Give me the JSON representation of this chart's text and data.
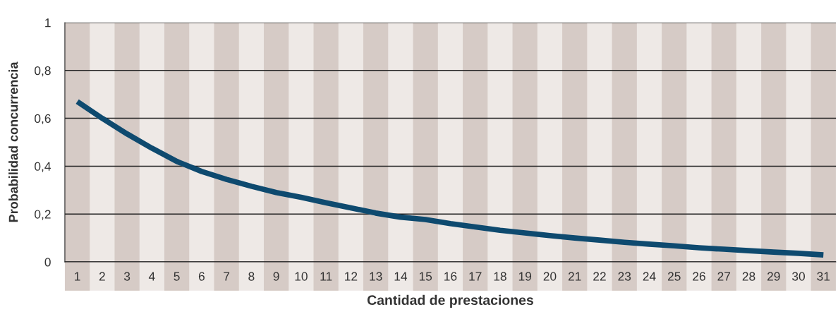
{
  "chart_data": {
    "type": "line",
    "xlabel": "Cantidad de prestaciones",
    "ylabel": "Probabilidad concurrencia",
    "categories": [
      "1",
      "2",
      "3",
      "4",
      "5",
      "6",
      "7",
      "8",
      "9",
      "10",
      "11",
      "12",
      "13",
      "14",
      "15",
      "16",
      "17",
      "18",
      "19",
      "20",
      "21",
      "22",
      "23",
      "24",
      "25",
      "26",
      "27",
      "28",
      "29",
      "30",
      "31"
    ],
    "series": [
      {
        "color": "#0e4a6f",
        "values": [
          0.67,
          0.6,
          0.535,
          0.475,
          0.42,
          0.378,
          0.345,
          0.316,
          0.29,
          0.27,
          0.247,
          0.226,
          0.204,
          0.187,
          0.177,
          0.16,
          0.146,
          0.132,
          0.121,
          0.11,
          0.1,
          0.091,
          0.082,
          0.074,
          0.067,
          0.059,
          0.053,
          0.047,
          0.041,
          0.036,
          0.029
        ]
      }
    ],
    "ylim": [
      0,
      1
    ],
    "yticks": [
      0,
      {
        "value": 0.2,
        "label": "0,2"
      },
      {
        "value": 0.4,
        "label": "0,4"
      },
      {
        "value": 0.6,
        "label": "0,6"
      },
      {
        "value": 0.8,
        "label": "0,8"
      },
      1
    ],
    "bands": [
      {
        "axis": "x",
        "from": "1",
        "to": "1",
        "color": "#d6cbc6"
      },
      {
        "axis": "x",
        "from": "3",
        "to": "3",
        "color": "#d6cbc6"
      },
      {
        "axis": "x",
        "from": "5",
        "to": "5",
        "color": "#d6cbc6"
      },
      {
        "axis": "x",
        "from": "7",
        "to": "7",
        "color": "#d6cbc6"
      },
      {
        "axis": "x",
        "from": "9",
        "to": "9",
        "color": "#d6cbc6"
      },
      {
        "axis": "x",
        "from": "11",
        "to": "11",
        "color": "#d6cbc6"
      },
      {
        "axis": "x",
        "from": "13",
        "to": "13",
        "color": "#d6cbc6"
      },
      {
        "axis": "x",
        "from": "15",
        "to": "15",
        "color": "#d6cbc6"
      },
      {
        "axis": "x",
        "from": "17",
        "to": "17",
        "color": "#d6cbc6"
      },
      {
        "axis": "x",
        "from": "19",
        "to": "19",
        "color": "#d6cbc6"
      },
      {
        "axis": "x",
        "from": "21",
        "to": "21",
        "color": "#d6cbc6"
      },
      {
        "axis": "x",
        "from": "23",
        "to": "23",
        "color": "#d6cbc6"
      },
      {
        "axis": "x",
        "from": "25",
        "to": "25",
        "color": "#d6cbc6"
      },
      {
        "axis": "x",
        "from": "27",
        "to": "27",
        "color": "#d6cbc6"
      },
      {
        "axis": "x",
        "from": "29",
        "to": "29",
        "color": "#d6cbc6"
      },
      {
        "axis": "x",
        "from": "31",
        "to": "31",
        "color": "#d6cbc6"
      }
    ],
    "grid": "y",
    "legend": false,
    "marker": "none",
    "line_style": "solid"
  }
}
